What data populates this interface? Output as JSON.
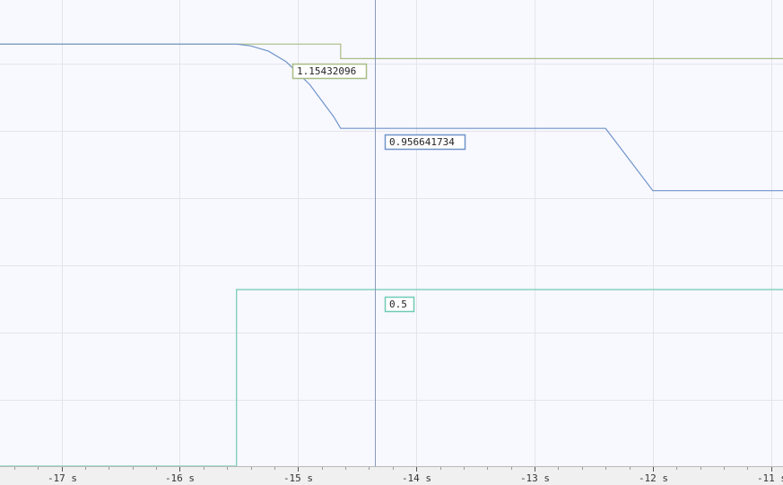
{
  "chart_data": {
    "type": "line",
    "title": "",
    "xlabel": "",
    "ylabel": "",
    "x_unit": "s",
    "xlim": [
      -17.52,
      -10.9
    ],
    "ylim": [
      0,
      1.32
    ],
    "x_ticks": [
      {
        "value": -17,
        "label": "-17 s"
      },
      {
        "value": -16,
        "label": "-16 s"
      },
      {
        "value": -15,
        "label": "-15 s"
      },
      {
        "value": -14,
        "label": "-14 s"
      },
      {
        "value": -13,
        "label": "-13 s"
      },
      {
        "value": -12,
        "label": "-12 s"
      },
      {
        "value": -11,
        "label": "-11 s"
      }
    ],
    "grid": true,
    "cursor_x": -14.35,
    "series": [
      {
        "color": "#a8bc84",
        "step": true,
        "points": [
          [
            -17.52,
            1.195
          ],
          [
            -14.64,
            1.195
          ],
          [
            -14.64,
            1.154
          ],
          [
            -10.9,
            1.154
          ]
        ],
        "readout": "1.15432096"
      },
      {
        "color": "#6f94c8",
        "step": false,
        "points": [
          [
            -17.52,
            1.195
          ],
          [
            -15.52,
            1.195
          ],
          [
            -15.4,
            1.19
          ],
          [
            -15.25,
            1.175
          ],
          [
            -15.1,
            1.145
          ],
          [
            -14.9,
            1.08
          ],
          [
            -14.7,
            0.99
          ],
          [
            -14.64,
            0.9566
          ],
          [
            -12.4,
            0.9566
          ],
          [
            -12.0,
            0.78
          ],
          [
            -10.9,
            0.78
          ]
        ],
        "readout": "0.956641734"
      },
      {
        "color": "#6fcbb4",
        "step": true,
        "points": [
          [
            -17.52,
            0.0
          ],
          [
            -15.52,
            0.0
          ],
          [
            -15.52,
            0.5
          ],
          [
            -10.9,
            0.5
          ]
        ],
        "readout": "0.5"
      }
    ]
  }
}
